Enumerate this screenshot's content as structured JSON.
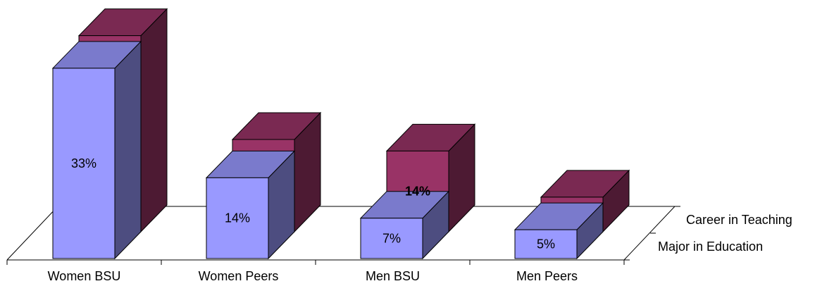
{
  "chart_data": {
    "type": "bar",
    "subtype": "3d-column",
    "categories": [
      "Women BSU",
      "Women Peers",
      "Men BSU",
      "Men Peers"
    ],
    "series": [
      {
        "name": "Major in Education",
        "values": [
          33,
          14,
          7,
          5
        ],
        "labels": [
          "33%",
          "14%",
          "7%",
          "5%"
        ],
        "color": "#9999ff",
        "color_side": "#4d4d80",
        "color_top": "#7a7acc"
      },
      {
        "name": "Career in Teaching",
        "values": [
          34,
          16,
          14,
          6
        ],
        "labels": [
          "",
          "",
          "14%",
          ""
        ],
        "color": "#993366",
        "color_side": "#4d1a33",
        "color_top": "#7a2952"
      }
    ],
    "ylim": [
      0,
      40
    ],
    "grid": false,
    "legend": "series-labels-on-depth-axis"
  }
}
